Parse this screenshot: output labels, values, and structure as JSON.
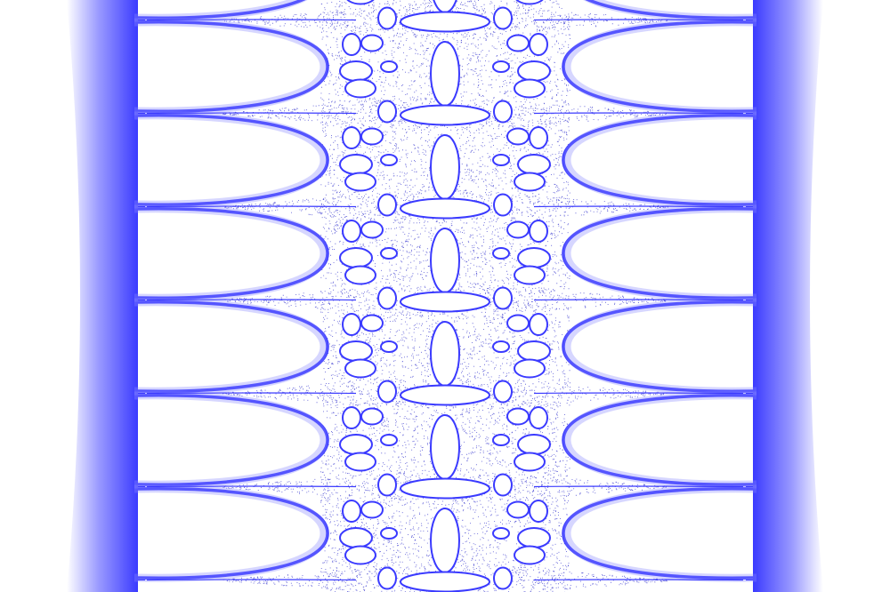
{
  "image": {
    "subject": "fractal",
    "colors": {
      "background": "#ffffff",
      "ink": "#3a3aff",
      "band": "#4545ff",
      "dust": "#2020c8"
    },
    "rows": 7,
    "symmetry": "vertical-and-horizontal"
  }
}
